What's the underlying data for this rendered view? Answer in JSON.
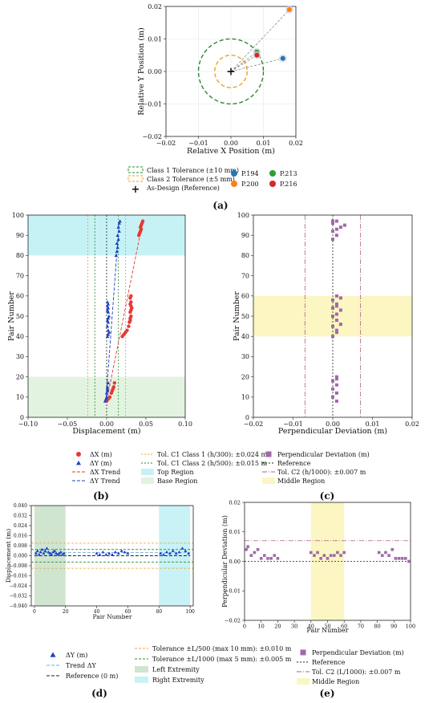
{
  "panels": {
    "a": {
      "label": "(a)"
    },
    "b": {
      "label": "(b)"
    },
    "c": {
      "label": "(c)"
    },
    "d": {
      "label": "(d)"
    },
    "e": {
      "label": "(e)"
    }
  },
  "chart_data": [
    {
      "id": "a",
      "type": "scatter",
      "xlabel": "Relative X Position (m)",
      "ylabel": "Relative Y Position (m)",
      "xlim": [
        -0.02,
        0.02
      ],
      "ylim": [
        -0.02,
        0.02
      ],
      "xticks": [
        "−0.02",
        "−0.01",
        "0.00",
        "0.01",
        "0.02"
      ],
      "yticks": [
        "−0.02",
        "−0.01",
        "0.00",
        "0.01",
        "0.02"
      ],
      "grid": true,
      "circles": [
        {
          "name": "Class 1 Tolerance (±10 mm)",
          "radius": 0.01,
          "color": "#2a8a2a"
        },
        {
          "name": "Class 2 Tolerance (±5 mm)",
          "radius": 0.005,
          "color": "#f0a020"
        }
      ],
      "reference": {
        "name": "As-Design (Reference)",
        "x": 0,
        "y": 0
      },
      "series": [
        {
          "name": "P.194",
          "x": 0.016,
          "y": 0.004,
          "color": "#1f77b4"
        },
        {
          "name": "P.200",
          "x": 0.018,
          "y": 0.019,
          "color": "#ff7f0e"
        },
        {
          "name": "P.213",
          "x": 0.008,
          "y": 0.006,
          "color": "#2ca02c"
        },
        {
          "name": "P.216",
          "x": 0.008,
          "y": 0.005,
          "color": "#d62728"
        }
      ],
      "legend_position": "below"
    },
    {
      "id": "b",
      "type": "scatter",
      "xlabel": "Displacement (m)",
      "ylabel": "Pair Number",
      "xlim": [
        -0.1,
        0.1
      ],
      "ylim": [
        0,
        100
      ],
      "xticks": [
        "−0.10",
        "−0.05",
        "0.00",
        "0.05",
        "0.10"
      ],
      "yticks": [
        "0",
        "10",
        "20",
        "30",
        "40",
        "50",
        "60",
        "70",
        "80",
        "90",
        "100"
      ],
      "regions": [
        {
          "name": "Top Region",
          "from": 80,
          "to": 100,
          "color": "#c6f2f6"
        },
        {
          "name": "Base Region",
          "from": 0,
          "to": 20,
          "color": "#e2f3e0"
        }
      ],
      "tolerance_lines": [
        {
          "name": "Tol. C1 Class 1 (h/300): ±0.024 m",
          "value": 0.024,
          "color": "#f0a020"
        },
        {
          "name": "Tol. C1 Class 2 (h/500): ±0.015 m",
          "value": 0.015,
          "color": "#2a8a2a"
        }
      ],
      "series": [
        {
          "name": "ΔX (m)",
          "marker": "circle",
          "color": "#e53935",
          "x": [
            0.0,
            0.002,
            0.004,
            0.006,
            0.007,
            0.008,
            0.009,
            0.01,
            0.02,
            0.022,
            0.024,
            0.026,
            0.028,
            0.029,
            0.03,
            0.03,
            0.031,
            0.03,
            0.031,
            0.032,
            0.031,
            0.03,
            0.031,
            0.03,
            0.031,
            0.041,
            0.042,
            0.043,
            0.044,
            0.043,
            0.044,
            0.045,
            0.046
          ],
          "y": [
            8,
            9,
            10,
            12,
            13,
            14,
            15,
            17,
            40,
            41,
            42,
            43,
            45,
            47,
            48,
            49,
            50,
            52,
            53,
            54,
            55,
            56,
            57,
            59,
            60,
            90,
            91,
            92,
            93,
            94,
            95,
            96,
            97
          ]
        },
        {
          "name": "ΔY (m)",
          "marker": "triangle",
          "color": "#1e40c8",
          "x": [
            -0.002,
            -0.001,
            0.0,
            0.0,
            0.001,
            0.001,
            0.001,
            0.002,
            0.001,
            0.002,
            0.003,
            0.002,
            0.001,
            0.002,
            0.001,
            0.002,
            0.003,
            0.002,
            0.001,
            0.002,
            0.001,
            0.002,
            0.001,
            0.012,
            0.013,
            0.014,
            0.013,
            0.015,
            0.014,
            0.016,
            0.015,
            0.016,
            0.017
          ],
          "y": [
            8,
            9,
            10,
            12,
            13,
            14,
            15,
            17,
            40,
            41,
            42,
            43,
            45,
            47,
            48,
            49,
            50,
            52,
            53,
            54,
            55,
            56,
            57,
            80,
            82,
            84,
            86,
            88,
            90,
            92,
            94,
            96,
            97
          ]
        },
        {
          "name": "ΔX Trend",
          "line": "dash",
          "color": "#e53935",
          "x": [
            0.0,
            0.046
          ],
          "y": [
            8,
            97
          ]
        },
        {
          "name": "ΔY Trend",
          "line": "dash",
          "color": "#1e40c8",
          "x": [
            -0.001,
            0.016
          ],
          "y": [
            8,
            97
          ]
        }
      ],
      "legend_position": "below"
    },
    {
      "id": "c",
      "type": "scatter",
      "xlabel": "Perpendicular Deviation (m)",
      "ylabel": "Pair Number",
      "xlim": [
        -0.02,
        0.02
      ],
      "ylim": [
        0,
        100
      ],
      "xticks": [
        "−0.02",
        "−0.01",
        "0.00",
        "0.01",
        "0.02"
      ],
      "yticks": [
        "0",
        "10",
        "20",
        "30",
        "40",
        "50",
        "60",
        "70",
        "80",
        "90",
        "100"
      ],
      "regions": [
        {
          "name": "Middle Region",
          "from": 40,
          "to": 60,
          "color": "#fbf6c2"
        }
      ],
      "tolerance_lines": [
        {
          "name": "Tol. C2 (h/1000): ±0.007 m",
          "value": 0.007,
          "color": "#b05c8a"
        }
      ],
      "series": [
        {
          "name": "Perpendicular Deviation (m)",
          "marker": "square",
          "color": "#a06aa8",
          "x": [
            0.001,
            0.0,
            0.001,
            0.0,
            0.001,
            0.0,
            0.001,
            0.001,
            0.0,
            0.001,
            0.001,
            0.0,
            0.002,
            0.001,
            0.0,
            0.001,
            0.002,
            0.0,
            0.001,
            0.001,
            0.0,
            0.001,
            0.002,
            0.0,
            0.001,
            0.0,
            0.001,
            0.002,
            0.003,
            0.0,
            0.001,
            0.0
          ],
          "y": [
            8,
            10,
            12,
            14,
            16,
            18,
            19,
            20,
            40,
            42,
            43,
            45,
            46,
            48,
            50,
            51,
            53,
            54,
            55,
            56,
            58,
            60,
            59,
            88,
            90,
            92,
            93,
            94,
            95,
            96,
            97,
            97
          ]
        }
      ],
      "legend_position": "below"
    },
    {
      "id": "d",
      "type": "scatter",
      "xlabel": "Pair Number",
      "ylabel": "Displacement (m)",
      "xlim": [
        -2,
        102
      ],
      "ylim": [
        -0.04,
        0.04
      ],
      "xticks": [
        "0",
        "20",
        "40",
        "60",
        "80",
        "100"
      ],
      "yticks": [
        "−0.040",
        "−0.032",
        "−0.024",
        "−0.016",
        "−0.008",
        "0.000",
        "0.008",
        "0.016",
        "0.024",
        "0.032",
        "0.040"
      ],
      "regions": [
        {
          "name": "Left Extremity",
          "from": 0,
          "to": 20,
          "color": "#cfe5cf"
        },
        {
          "name": "Right Extremity",
          "from": 80,
          "to": 100,
          "color": "#c8f2f6"
        }
      ],
      "tolerance_lines": [
        {
          "name": "Tolerance ±L/500 (max 10 mm): ±0.010 m",
          "value": 0.01,
          "color": "#f0a020"
        },
        {
          "name": "Tolerance ±L/1000 (max 5 mm): ±0.005 m",
          "value": 0.005,
          "color": "#2a8a2a"
        }
      ],
      "series": [
        {
          "name": "ΔY (m)",
          "marker": "triangle",
          "color": "#1e40c8",
          "x": [
            1,
            2,
            3,
            4,
            5,
            6,
            7,
            8,
            9,
            10,
            11,
            12,
            13,
            14,
            15,
            16,
            17,
            18,
            19,
            40,
            42,
            44,
            46,
            48,
            50,
            52,
            54,
            56,
            58,
            60,
            81,
            83,
            85,
            87,
            89,
            91,
            93,
            95,
            97,
            99
          ],
          "y": [
            0.002,
            0.004,
            0.001,
            0.003,
            0.005,
            0.002,
            0.004,
            0.006,
            0.003,
            0.002,
            0.001,
            0.003,
            0.004,
            0.002,
            0.001,
            0.002,
            0.003,
            0.001,
            0.002,
            0.002,
            0.001,
            0.003,
            0.001,
            0.002,
            0.001,
            0.003,
            0.002,
            0.004,
            0.003,
            0.002,
            0.002,
            0.001,
            0.003,
            0.002,
            0.004,
            0.002,
            0.003,
            0.006,
            0.004,
            0.002
          ]
        },
        {
          "name": "Trend ΔY",
          "line": "dash",
          "color": "#6ab0e8",
          "x": [
            0,
            100
          ],
          "y": [
            0.0025,
            0.0025
          ]
        },
        {
          "name": "Reference (0 m)",
          "line": "dash",
          "color": "#222222",
          "x": [
            0,
            100
          ],
          "y": [
            0,
            0
          ]
        }
      ],
      "legend_position": "below"
    },
    {
      "id": "e",
      "type": "scatter",
      "xlabel": "Pair Number",
      "ylabel": "Perpendicular Deviation (m)",
      "xlim": [
        0,
        100
      ],
      "ylim": [
        -0.02,
        0.02
      ],
      "xticks": [
        "0",
        "10",
        "20",
        "30",
        "40",
        "50",
        "60",
        "70",
        "80",
        "90",
        "100"
      ],
      "yticks": [
        "−0.02",
        "−0.01",
        "0.00",
        "0.01",
        "0.02"
      ],
      "regions": [
        {
          "name": "Middle Region",
          "from": 40,
          "to": 60,
          "color": "#fbf6c2"
        }
      ],
      "tolerance_lines": [
        {
          "name": "Tol. C2 (L/1000): ±0.007 m",
          "value": 0.007,
          "color": "#b05c8a"
        }
      ],
      "series": [
        {
          "name": "Perpendicular Deviation (m)",
          "marker": "square",
          "color": "#a06aa8",
          "x": [
            1,
            2,
            4,
            6,
            8,
            10,
            12,
            14,
            16,
            18,
            20,
            40,
            42,
            44,
            46,
            48,
            50,
            52,
            54,
            56,
            58,
            60,
            81,
            83,
            85,
            87,
            89,
            91,
            93,
            95,
            97,
            99
          ],
          "y": [
            0.004,
            0.005,
            0.002,
            0.003,
            0.004,
            0.001,
            0.002,
            0.001,
            0.001,
            0.002,
            0.001,
            0.003,
            0.002,
            0.003,
            0.001,
            0.002,
            0.001,
            0.002,
            0.002,
            0.003,
            0.002,
            0.003,
            0.003,
            0.002,
            0.003,
            0.002,
            0.004,
            0.001,
            0.001,
            0.001,
            0.001,
            0.0
          ]
        },
        {
          "name": "Reference",
          "line": "dash",
          "color": "#222222",
          "x": [
            0,
            100
          ],
          "y": [
            0,
            0
          ]
        }
      ],
      "legend_position": "below"
    }
  ]
}
